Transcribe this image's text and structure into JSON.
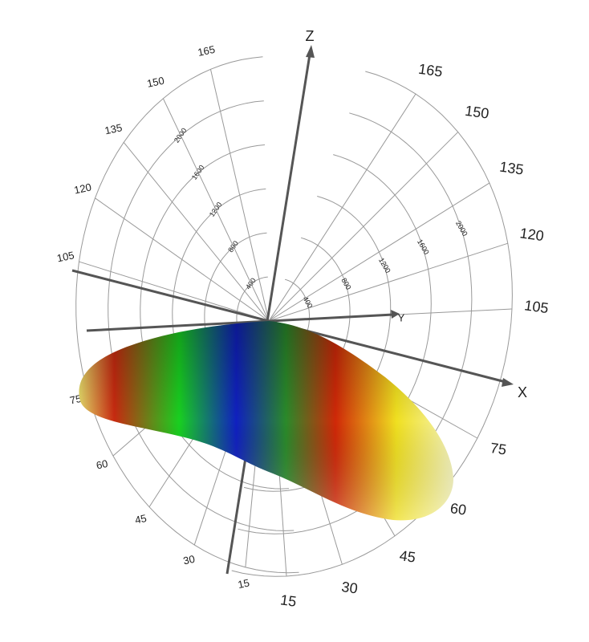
{
  "chart_data": {
    "type": "polar3d",
    "axis_labels": {
      "x": "X",
      "y": "Y",
      "z": "Z"
    },
    "rlim": [
      0,
      2400
    ],
    "halves": [
      {
        "angle_labels": [
          165,
          150,
          135,
          120,
          105,
          75,
          60,
          45,
          30,
          15
        ],
        "radial_ticks": [
          400,
          800,
          1200,
          1600,
          2000
        ]
      },
      {
        "angle_labels": [
          165,
          150,
          135,
          120,
          105,
          75,
          60,
          45,
          30,
          15
        ],
        "radial_ticks": [
          400,
          800,
          1200,
          1600,
          2000
        ]
      }
    ]
  }
}
